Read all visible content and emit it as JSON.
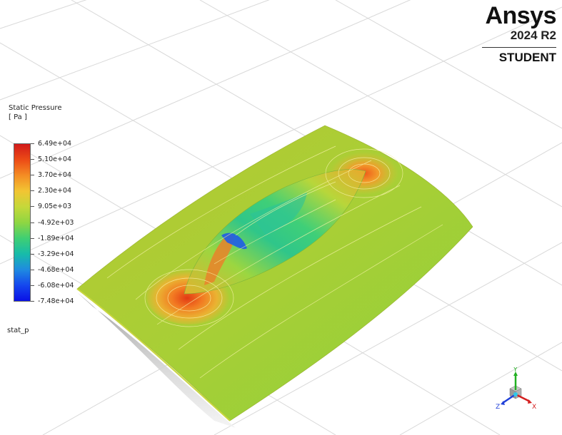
{
  "logo": {
    "brand": "Ansys",
    "version": "2024 R2",
    "edition": "STUDENT"
  },
  "legend": {
    "title_line1": "Static Pressure",
    "title_line2": "[ Pa ]",
    "ticks": [
      "6.49e+04",
      "5.10e+04",
      "3.70e+04",
      "2.30e+04",
      "9.05e+03",
      "-4.92e+03",
      "-1.89e+04",
      "-3.29e+04",
      "-4.68e+04",
      "-6.08e+04",
      "-7.48e+04"
    ]
  },
  "variable_name": "stat_p",
  "triad": {
    "x_label": "X",
    "y_label": "Y",
    "z_label": "Z",
    "x_color": "#d42020",
    "y_color": "#22b022",
    "z_color": "#2040d8"
  }
}
